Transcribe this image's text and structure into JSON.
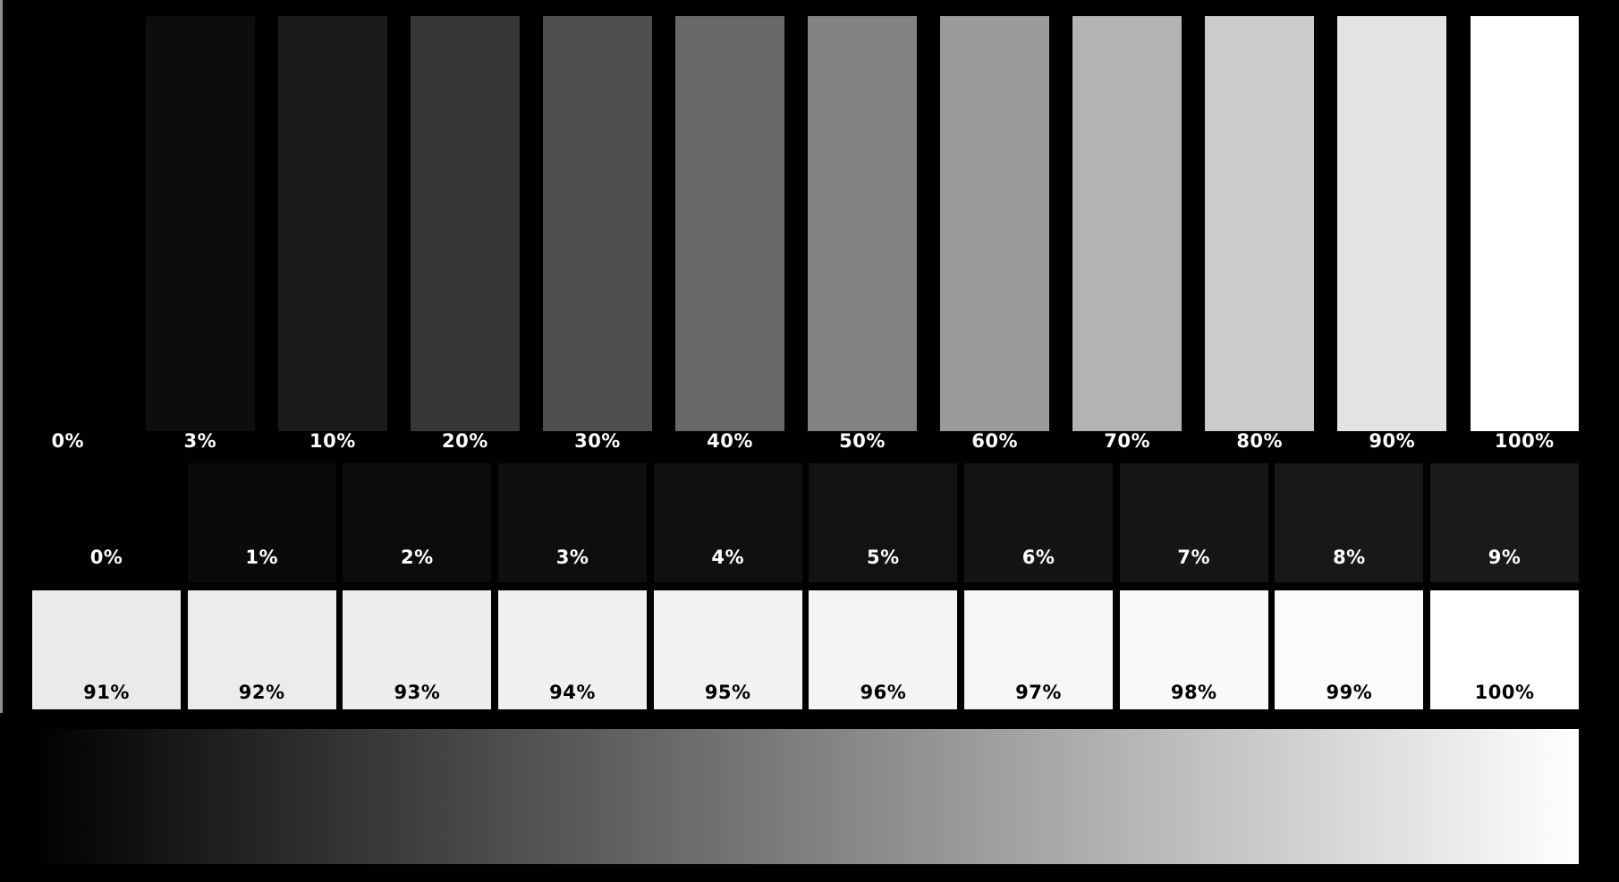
{
  "canvas": {
    "background": "#000000",
    "edge_line_color": "#8f8f8f"
  },
  "chart_data": [
    {
      "type": "bar",
      "name": "gray-step-wedge-main",
      "categories": [
        "0%",
        "3%",
        "10%",
        "20%",
        "30%",
        "40%",
        "50%",
        "60%",
        "70%",
        "80%",
        "90%",
        "100%"
      ],
      "values": [
        0,
        3,
        10,
        20,
        30,
        40,
        50,
        60,
        70,
        80,
        90,
        100
      ],
      "colors": [
        "#000000",
        "#0d0d0d",
        "#1b1b1b",
        "#373737",
        "#4f4f4f",
        "#686868",
        "#828282",
        "#9b9b9b",
        "#b3b3b3",
        "#cbcbcb",
        "#e3e3e3",
        "#ffffff"
      ],
      "label_color": "#ffffff",
      "legend_position": "none",
      "grid": false
    },
    {
      "type": "bar",
      "name": "near-black-steps",
      "categories": [
        "0%",
        "1%",
        "2%",
        "3%",
        "4%",
        "5%",
        "6%",
        "7%",
        "8%",
        "9%"
      ],
      "values": [
        0,
        1,
        2,
        3,
        4,
        5,
        6,
        7,
        8,
        9
      ],
      "colors": [
        "#000000",
        "#0a0a0a",
        "#0c0c0c",
        "#0e0e0e",
        "#101010",
        "#121212",
        "#141414",
        "#161616",
        "#181818",
        "#1a1a1a"
      ],
      "label_color": "#ffffff",
      "legend_position": "none",
      "grid": false
    },
    {
      "type": "bar",
      "name": "near-white-steps",
      "categories": [
        "91%",
        "92%",
        "93%",
        "94%",
        "95%",
        "96%",
        "97%",
        "98%",
        "99%",
        "100%"
      ],
      "values": [
        91,
        92,
        93,
        94,
        95,
        96,
        97,
        98,
        99,
        100
      ],
      "colors": [
        "#eaeaea",
        "#ececec",
        "#eeeeee",
        "#f0f0f0",
        "#f2f2f2",
        "#f4f4f4",
        "#f6f6f6",
        "#f9f9f9",
        "#fbfbfb",
        "#ffffff"
      ],
      "label_color": "#000000",
      "legend_position": "none",
      "grid": false
    },
    {
      "type": "area",
      "name": "continuous-grayscale-ramp",
      "gradient_from": "#000000",
      "gradient_to": "#ffffff",
      "range_percent": [
        0,
        100
      ],
      "direction": "left-to-right"
    }
  ]
}
